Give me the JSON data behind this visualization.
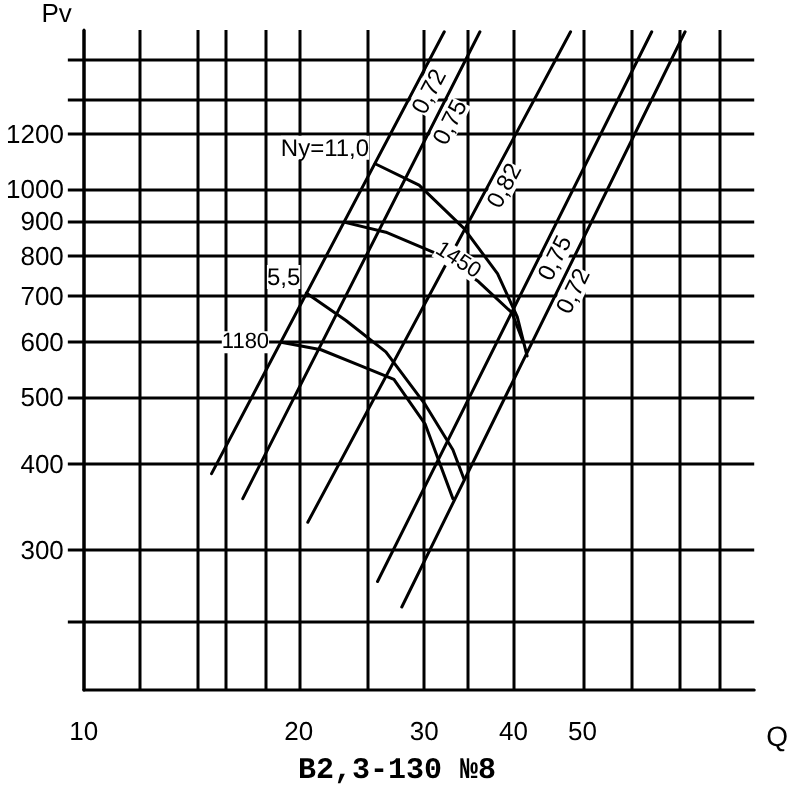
{
  "chart_data": {
    "type": "line",
    "title": "В2,3-130 №8",
    "xlabel": "Q",
    "ylabel": "Pv",
    "log": "xy",
    "grid": true,
    "legend": false,
    "marker": "none",
    "line_style": "solid",
    "xlim": [
      10,
      87
    ],
    "ylim": [
      188,
      1700
    ],
    "xticks": [
      10,
      {
        "value": 12,
        "label": null
      },
      {
        "value": 14.4,
        "label": null
      },
      {
        "value": 15.8,
        "label": null
      },
      {
        "value": 18,
        "label": null
      },
      20,
      {
        "value": 25,
        "label": null
      },
      30,
      {
        "value": 34.5,
        "label": null
      },
      40,
      50,
      {
        "value": 58.5,
        "label": null
      },
      {
        "value": 68.4,
        "label": null
      },
      {
        "value": 77.7,
        "label": null
      }
    ],
    "yticks": [
      {
        "value": 236,
        "label": null
      },
      300,
      400,
      500,
      600,
      700,
      800,
      900,
      1000,
      1200,
      {
        "value": 1350,
        "label": null
      },
      {
        "value": 1540,
        "label": null
      }
    ],
    "series": [
      {
        "name": "0,72",
        "color": "#000000",
        "x": [
          15.1,
          32.0
        ],
        "values": [
          387,
          1690
        ]
      },
      {
        "name": "0,75",
        "color": "#000000",
        "x": [
          16.7,
          35.9
        ],
        "values": [
          356,
          1690
        ]
      },
      {
        "name": "0,82",
        "color": "#000000",
        "x": [
          20.6,
          48.1
        ],
        "values": [
          329,
          1690
        ]
      },
      {
        "name": "0,75",
        "color": "#000000",
        "x": [
          25.8,
          62.5
        ],
        "values": [
          270,
          1690
        ]
      },
      {
        "name": "0,72",
        "color": "#000000",
        "x": [
          27.9,
          69.6
        ],
        "values": [
          248,
          1690
        ]
      },
      {
        "name": "Ny=11,0",
        "color": "#000000",
        "x": [
          25.6,
          29.5,
          34.1,
          38.0,
          40.5,
          41.8
        ],
        "values": [
          1088,
          1013,
          877,
          754,
          653,
          573
        ]
      },
      {
        "name": "1450",
        "color": "#000000",
        "x": [
          23.3,
          26.5,
          30.8,
          35.7,
          39.8,
          41.3
        ],
        "values": [
          894,
          866,
          811,
          735,
          662,
          600
        ]
      },
      {
        "name": "5,5",
        "color": "#000000",
        "x": [
          20.5,
          23.3,
          26.5,
          30.1,
          32.9,
          34.1
        ],
        "values": [
          707,
          645,
          581,
          487,
          419,
          380
        ]
      },
      {
        "name": "1180",
        "color": "#000000",
        "x": [
          18.9,
          21.5,
          24.4,
          27.2,
          30.1,
          32.9
        ],
        "values": [
          600,
          585,
          555,
          530,
          456,
          356
        ]
      }
    ]
  }
}
